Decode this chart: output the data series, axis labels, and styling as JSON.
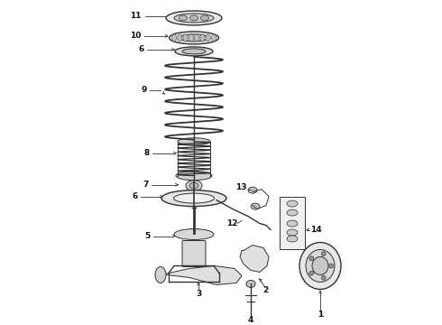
{
  "bg_color": "#ffffff",
  "line_color": "#333333",
  "label_color": "#111111",
  "fig_width": 4.9,
  "fig_height": 3.6,
  "dpi": 100
}
